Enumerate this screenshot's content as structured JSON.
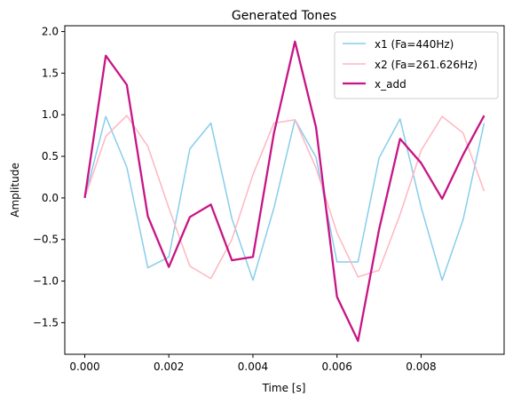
{
  "chart_data": {
    "type": "line",
    "title": "Generated Tones",
    "xlabel": "Time [s]",
    "ylabel": "Amplitude",
    "xlim": [
      -0.000475,
      0.009975
    ],
    "ylim": [
      -1.88,
      2.07
    ],
    "x": [
      0.0,
      0.0005,
      0.001,
      0.0015,
      0.002,
      0.0025,
      0.003,
      0.0035,
      0.004,
      0.0045,
      0.005,
      0.0055,
      0.006,
      0.0065,
      0.007,
      0.0075,
      0.008,
      0.0085,
      0.009,
      0.0095
    ],
    "xticks": [
      0.0,
      0.002,
      0.004,
      0.006,
      0.008
    ],
    "xtick_labels": [
      "0.000",
      "0.002",
      "0.004",
      "0.006",
      "0.008"
    ],
    "yticks": [
      -1.5,
      -1.0,
      -0.5,
      0.0,
      0.5,
      1.0,
      1.5,
      2.0
    ],
    "ytick_labels": [
      "−1.5",
      "−1.0",
      "−0.5",
      "0.0",
      "0.5",
      "1.0",
      "1.5",
      "2.0"
    ],
    "grid": false,
    "legend_position": "upper right",
    "series": [
      {
        "name": "x1 (Fa=440Hz)",
        "color": "#87CEEB",
        "values": [
          0.0,
          0.98,
          0.37,
          -0.84,
          -0.71,
          0.59,
          0.9,
          -0.25,
          -0.99,
          -0.12,
          0.94,
          0.49,
          -0.77,
          -0.77,
          0.48,
          0.95,
          -0.11,
          -0.99,
          -0.26,
          0.9
        ]
      },
      {
        "name": "x2 (Fa=261.626Hz)",
        "color": "#FFB6C1",
        "values": [
          0.0,
          0.74,
          0.99,
          0.62,
          -0.12,
          -0.82,
          -0.97,
          -0.5,
          0.28,
          0.9,
          0.94,
          0.36,
          -0.42,
          -0.95,
          -0.87,
          -0.2,
          0.57,
          0.98,
          0.78,
          0.08
        ]
      },
      {
        "name": "x_add",
        "color": "#C71585",
        "values": [
          0.0,
          1.71,
          1.36,
          -0.22,
          -0.83,
          -0.23,
          -0.08,
          -0.75,
          -0.71,
          0.78,
          1.88,
          0.85,
          -1.19,
          -1.72,
          -0.38,
          0.71,
          0.42,
          -0.01,
          0.52,
          0.99
        ]
      }
    ]
  }
}
